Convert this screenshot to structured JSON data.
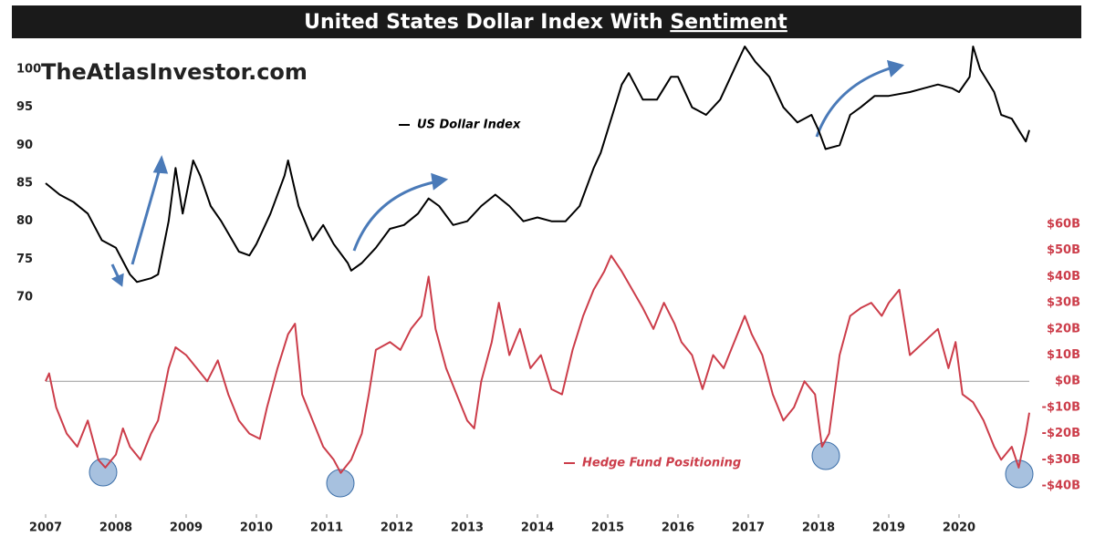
{
  "chart_data": {
    "type": "line",
    "title": "United States Dollar Index With",
    "title_underlined": "Sentiment",
    "watermark": "TheAtlasInvestor.com",
    "xlim": [
      2007,
      2021
    ],
    "xticks": [
      2007,
      2008,
      2009,
      2010,
      2011,
      2012,
      2013,
      2014,
      2015,
      2016,
      2017,
      2018,
      2019,
      2020
    ],
    "ylim": [
      67,
      106
    ],
    "yticks": [
      70,
      75,
      80,
      85,
      90,
      95,
      100
    ],
    "y2lim": [
      -48,
      60
    ],
    "y2ticks": [
      {
        "value": -40,
        "label": "-$40B"
      },
      {
        "value": -30,
        "label": "-$30B"
      },
      {
        "value": -20,
        "label": "-$20B"
      },
      {
        "value": -10,
        "label": "-$10B"
      },
      {
        "value": 0,
        "label": "$0B"
      },
      {
        "value": 10,
        "label": "$10B"
      },
      {
        "value": 20,
        "label": "$20B"
      },
      {
        "value": 30,
        "label": "$30B"
      },
      {
        "value": 40,
        "label": "$40B"
      },
      {
        "value": 50,
        "label": "$50B"
      },
      {
        "value": 60,
        "label": "$60B"
      }
    ],
    "y2_zero_line": true,
    "series": [
      {
        "name": "US Dollar Index",
        "color": "#000000",
        "x": [
          2007.0,
          2007.2,
          2007.4,
          2007.6,
          2007.8,
          2008.0,
          2008.2,
          2008.3,
          2008.5,
          2008.6,
          2008.75,
          2008.85,
          2008.95,
          2009.1,
          2009.2,
          2009.35,
          2009.5,
          2009.75,
          2009.9,
          2010.0,
          2010.2,
          2010.4,
          2010.45,
          2010.6,
          2010.8,
          2010.95,
          2011.1,
          2011.3,
          2011.35,
          2011.5,
          2011.7,
          2011.9,
          2012.1,
          2012.3,
          2012.45,
          2012.6,
          2012.8,
          2013.0,
          2013.2,
          2013.4,
          2013.6,
          2013.8,
          2014.0,
          2014.2,
          2014.4,
          2014.6,
          2014.8,
          2014.9,
          2015.0,
          2015.2,
          2015.3,
          2015.5,
          2015.7,
          2015.9,
          2016.0,
          2016.2,
          2016.4,
          2016.6,
          2016.85,
          2016.95,
          2017.1,
          2017.3,
          2017.5,
          2017.7,
          2017.9,
          2018.0,
          2018.1,
          2018.3,
          2018.45,
          2018.6,
          2018.8,
          2019.0,
          2019.3,
          2019.5,
          2019.7,
          2019.9,
          2020.0,
          2020.15,
          2020.2,
          2020.3,
          2020.5,
          2020.6,
          2020.75,
          2020.85,
          2020.95,
          2021.0
        ],
        "values": [
          85,
          83.5,
          82.5,
          81,
          77.5,
          76.5,
          73,
          72,
          72.5,
          73,
          80,
          87,
          81,
          88,
          86,
          82,
          80,
          76,
          75.5,
          77,
          81,
          86,
          88,
          82,
          77.5,
          79.5,
          77,
          74.5,
          73.5,
          74.5,
          76.5,
          79,
          79.5,
          81,
          83,
          82,
          79.5,
          80,
          82,
          83.5,
          82,
          80,
          80.5,
          80,
          80,
          82,
          87,
          89,
          92,
          98,
          99.5,
          96,
          96,
          99,
          99,
          95,
          94,
          96,
          101,
          103,
          101,
          99,
          95,
          93,
          94,
          92,
          89.5,
          90,
          94,
          95,
          96.5,
          96.5,
          97,
          97.5,
          98,
          97.5,
          97,
          99,
          103,
          100,
          97,
          94,
          93.5,
          92,
          90.5,
          92
        ]
      },
      {
        "name": "Hedge Fund Positioning",
        "color": "#cc3d4a",
        "axis": "y2",
        "x": [
          2007.0,
          2007.05,
          2007.15,
          2007.3,
          2007.45,
          2007.6,
          2007.75,
          2007.85,
          2008.0,
          2008.1,
          2008.2,
          2008.35,
          2008.5,
          2008.6,
          2008.75,
          2008.85,
          2009.0,
          2009.15,
          2009.3,
          2009.45,
          2009.6,
          2009.75,
          2009.9,
          2010.05,
          2010.15,
          2010.3,
          2010.45,
          2010.55,
          2010.65,
          2010.8,
          2010.95,
          2011.1,
          2011.2,
          2011.35,
          2011.5,
          2011.6,
          2011.7,
          2011.9,
          2012.05,
          2012.2,
          2012.35,
          2012.45,
          2012.55,
          2012.7,
          2012.85,
          2013.0,
          2013.1,
          2013.2,
          2013.35,
          2013.45,
          2013.6,
          2013.75,
          2013.9,
          2014.05,
          2014.2,
          2014.35,
          2014.5,
          2014.65,
          2014.8,
          2014.95,
          2015.05,
          2015.2,
          2015.35,
          2015.5,
          2015.65,
          2015.8,
          2015.95,
          2016.05,
          2016.2,
          2016.35,
          2016.5,
          2016.65,
          2016.8,
          2016.95,
          2017.05,
          2017.2,
          2017.35,
          2017.5,
          2017.65,
          2017.8,
          2017.95,
          2018.05,
          2018.15,
          2018.3,
          2018.45,
          2018.6,
          2018.75,
          2018.9,
          2019.0,
          2019.15,
          2019.3,
          2019.5,
          2019.7,
          2019.85,
          2019.95,
          2020.05,
          2020.2,
          2020.35,
          2020.5,
          2020.6,
          2020.75,
          2020.85,
          2020.95,
          2021.0
        ],
        "values": [
          0,
          3,
          -10,
          -20,
          -25,
          -15,
          -30,
          -33,
          -28,
          -18,
          -25,
          -30,
          -20,
          -15,
          5,
          13,
          10,
          5,
          0,
          8,
          -5,
          -15,
          -20,
          -22,
          -10,
          5,
          18,
          22,
          -5,
          -15,
          -25,
          -30,
          -35,
          -30,
          -20,
          -5,
          12,
          15,
          12,
          20,
          25,
          40,
          20,
          5,
          -5,
          -15,
          -18,
          0,
          15,
          30,
          10,
          20,
          5,
          10,
          -3,
          -5,
          12,
          25,
          35,
          42,
          48,
          42,
          35,
          28,
          20,
          30,
          22,
          15,
          10,
          -3,
          10,
          5,
          15,
          25,
          18,
          10,
          -5,
          -15,
          -10,
          0,
          -5,
          -25,
          -20,
          10,
          25,
          28,
          30,
          25,
          30,
          35,
          10,
          15,
          20,
          5,
          15,
          -5,
          -8,
          -15,
          -25,
          -30,
          -25,
          -33,
          -20,
          -12
        ]
      }
    ]
  }
}
